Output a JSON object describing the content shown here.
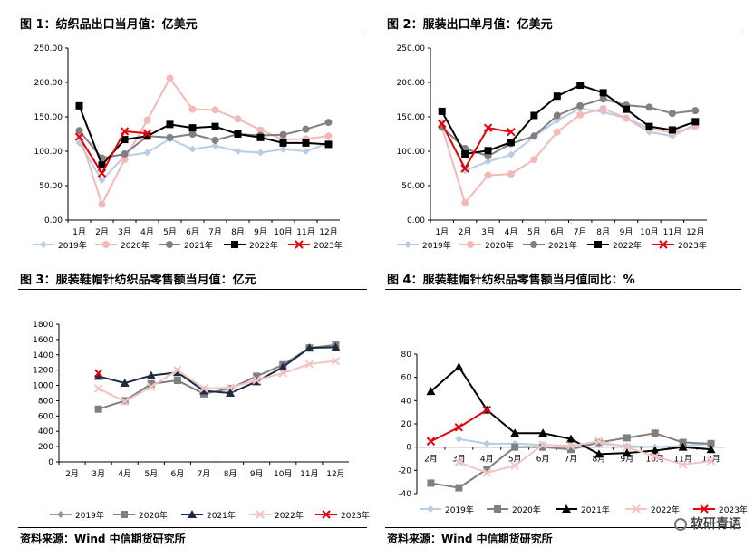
{
  "colors": {
    "2019": "#b8cce4",
    "2020": "#f4b8b8",
    "2021": "#808080",
    "2022": "#000000",
    "2023": "#e8000b",
    "fig3_2020": "#808080",
    "fig3_2021": "#1f2a44",
    "fig3_2022": "#f2c4c4",
    "fig4_2019": "#b8cce4",
    "fig4_2020": "#808080",
    "fig4_2021": "#000000",
    "fig4_2022": "#f2c4c4"
  },
  "titles": {
    "fig1": "图 1：纺织品出口当月值：亿美元",
    "fig2": "图 2：服装出口单月值：亿美元",
    "fig3": "图 3：服装鞋帽针纺织品零售额当月值：亿元",
    "fig4": "图 4：服装鞋帽针纺织品零售额当月值同比：%"
  },
  "sources": {
    "left": "资料来源：Wind 中信期货研究所",
    "right": "资料来源：Wind 中信期货研究所"
  },
  "watermark": {
    "text": "软研青语",
    "icon": "wechat-icon"
  },
  "chart_data": [
    {
      "id": "fig1",
      "type": "line",
      "categories": [
        "1月",
        "2月",
        "3月",
        "4月",
        "5月",
        "6月",
        "7月",
        "8月",
        "9月",
        "10月",
        "11月",
        "12月"
      ],
      "ylim": [
        0,
        250
      ],
      "yticks": [
        "0.00",
        "50.00",
        "100.00",
        "150.00",
        "200.00",
        "250.00"
      ],
      "grid": false,
      "legend": "bottom",
      "series": [
        {
          "name": "2019年",
          "key": "2019",
          "marker": "diamond",
          "values": [
            112,
            58,
            93,
            98,
            118,
            103,
            108,
            100,
            98,
            103,
            100,
            112
          ]
        },
        {
          "name": "2020年",
          "key": "2020",
          "marker": "circle",
          "values": [
            125,
            23,
            88,
            145,
            206,
            161,
            160,
            147,
            131,
            117,
            118,
            122
          ]
        },
        {
          "name": "2021年",
          "key": "2021",
          "marker": "circle",
          "values": [
            130,
            90,
            96,
            122,
            120,
            125,
            116,
            125,
            123,
            124,
            132,
            142
          ]
        },
        {
          "name": "2022年",
          "key": "2022",
          "marker": "square",
          "values": [
            166,
            80,
            117,
            122,
            139,
            134,
            136,
            125,
            120,
            112,
            112,
            110
          ]
        },
        {
          "name": "2023年",
          "key": "2023",
          "marker": "x",
          "values": [
            121,
            68,
            129,
            126,
            null,
            null,
            null,
            null,
            null,
            null,
            null,
            null
          ]
        }
      ]
    },
    {
      "id": "fig2",
      "type": "line",
      "categories": [
        "1月",
        "2月",
        "3月",
        "4月",
        "5月",
        "6月",
        "7月",
        "8月",
        "9月",
        "10月",
        "11月",
        "12月"
      ],
      "ylim": [
        0,
        250
      ],
      "yticks": [
        "0.00",
        "50.00",
        "100.00",
        "150.00",
        "200.00",
        "250.00"
      ],
      "grid": false,
      "legend": "bottom",
      "series": [
        {
          "name": "2019年",
          "key": "2019",
          "marker": "diamond",
          "values": [
            142,
            72,
            85,
            95,
            121,
            145,
            162,
            157,
            148,
            128,
            122,
            139
          ]
        },
        {
          "name": "2020年",
          "key": "2020",
          "marker": "circle",
          "values": [
            135,
            25,
            65,
            67,
            88,
            128,
            153,
            162,
            148,
            133,
            127,
            136
          ]
        },
        {
          "name": "2021年",
          "key": "2021",
          "marker": "circle",
          "values": [
            135,
            104,
            93,
            111,
            122,
            152,
            166,
            176,
            167,
            164,
            155,
            159
          ]
        },
        {
          "name": "2022年",
          "key": "2022",
          "marker": "square",
          "values": [
            158,
            96,
            101,
            113,
            152,
            180,
            196,
            185,
            161,
            136,
            131,
            143
          ]
        },
        {
          "name": "2023年",
          "key": "2023",
          "marker": "x",
          "values": [
            140,
            75,
            134,
            128,
            null,
            null,
            null,
            null,
            null,
            null,
            null,
            null
          ]
        }
      ]
    },
    {
      "id": "fig3",
      "type": "line",
      "categories": [
        "2月",
        "3月",
        "4月",
        "5月",
        "6月",
        "7月",
        "8月",
        "9月",
        "10月",
        "11月",
        "12月"
      ],
      "ylim": [
        0,
        1800
      ],
      "yticks": [
        "0",
        "200",
        "400",
        "600",
        "800",
        "1000",
        "1200",
        "1400",
        "1600",
        "1800"
      ],
      "grid": false,
      "legend": "bottom",
      "series": [
        {
          "name": "2019年",
          "key": "fig3_2019",
          "marker": "diamond",
          "values": [
            null,
            null,
            null,
            null,
            null,
            null,
            null,
            null,
            null,
            null,
            null
          ]
        },
        {
          "name": "2020年",
          "key": "fig3_2020",
          "marker": "square",
          "values": [
            null,
            690,
            800,
            1020,
            1065,
            890,
            960,
            1120,
            1270,
            1490,
            1530
          ]
        },
        {
          "name": "2021年",
          "key": "fig3_2021",
          "marker": "triangle",
          "values": [
            null,
            1120,
            1030,
            1130,
            1170,
            930,
            900,
            1050,
            1240,
            1490,
            1500
          ]
        },
        {
          "name": "2022年",
          "key": "fig3_2022",
          "marker": "x",
          "values": [
            null,
            960,
            790,
            980,
            1200,
            960,
            970,
            1070,
            1160,
            1280,
            1320
          ]
        },
        {
          "name": "2023年",
          "key": "2023",
          "marker": "x",
          "values": [
            null,
            1160,
            null,
            null,
            null,
            null,
            null,
            null,
            null,
            null,
            null
          ]
        }
      ]
    },
    {
      "id": "fig4",
      "type": "line",
      "categories": [
        "2月",
        "3月",
        "4月",
        "5月",
        "6月",
        "7月",
        "8月",
        "9月",
        "10月",
        "11月",
        "12月"
      ],
      "ylim": [
        -40,
        80
      ],
      "yticks": [
        "-40",
        "-20",
        "0",
        "20",
        "40",
        "60",
        "80"
      ],
      "grid": false,
      "legend": "bottom",
      "series": [
        {
          "name": "2019年",
          "key": "fig4_2019",
          "marker": "diamond",
          "values": [
            null,
            7,
            3,
            3,
            2,
            1,
            3,
            1,
            0,
            1,
            3
          ]
        },
        {
          "name": "2020年",
          "key": "fig4_2020",
          "marker": "square",
          "values": [
            -31,
            -35,
            -19,
            0,
            0,
            -2,
            4,
            8,
            12,
            4,
            3
          ]
        },
        {
          "name": "2021年",
          "key": "fig4_2021",
          "marker": "triangle",
          "values": [
            48,
            69,
            32,
            12,
            12,
            7,
            -6,
            -5,
            -3,
            0,
            -2
          ]
        },
        {
          "name": "2022年",
          "key": "fig4_2022",
          "marker": "x",
          "values": [
            null,
            -13,
            -22,
            -16,
            2,
            1,
            5,
            0,
            -8,
            -15,
            -12
          ]
        },
        {
          "name": "2023年",
          "key": "2023",
          "marker": "x",
          "values": [
            5,
            17,
            32,
            null,
            null,
            null,
            null,
            null,
            null,
            null,
            null
          ]
        }
      ]
    }
  ]
}
